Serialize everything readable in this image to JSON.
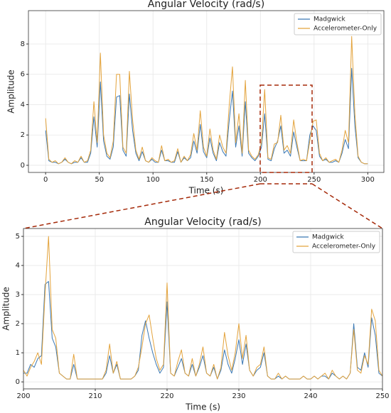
{
  "chart_data": [
    {
      "type": "line",
      "title": "Angular Velocity (rad/s)",
      "xlabel": "Time (s)",
      "ylabel": "Amplitude",
      "x": [
        0,
        3,
        6,
        9,
        12,
        15,
        18,
        21,
        24,
        27,
        30,
        33,
        36,
        39,
        42,
        45,
        48,
        51,
        54,
        57,
        60,
        63,
        66,
        69,
        72,
        75,
        78,
        81,
        84,
        87,
        90,
        93,
        96,
        99,
        102,
        105,
        108,
        111,
        114,
        117,
        120,
        123,
        126,
        129,
        132,
        135,
        138,
        141,
        144,
        147,
        150,
        153,
        156,
        159,
        162,
        165,
        168,
        171,
        174,
        177,
        180,
        183,
        186,
        189,
        192,
        195,
        198,
        201,
        204,
        207,
        210,
        213,
        216,
        219,
        222,
        225,
        228,
        231,
        234,
        237,
        240,
        243,
        246,
        249,
        252,
        255,
        258,
        261,
        264,
        267,
        270,
        273,
        276,
        279,
        282,
        285,
        288,
        291,
        294,
        297,
        300
      ],
      "series": [
        {
          "name": "Madgwick",
          "color": "#3b78b4",
          "values": [
            2.3,
            0.3,
            0.2,
            0.2,
            0.1,
            0.2,
            0.4,
            0.2,
            0.1,
            0.2,
            0.2,
            0.5,
            0.2,
            0.2,
            0.8,
            3.2,
            1.2,
            5.5,
            1.6,
            0.6,
            0.4,
            1.2,
            4.5,
            4.6,
            1.0,
            0.6,
            4.7,
            2.3,
            0.8,
            0.3,
            0.9,
            0.3,
            0.2,
            0.4,
            0.2,
            0.2,
            1.0,
            0.3,
            0.3,
            0.2,
            0.2,
            0.9,
            0.2,
            0.5,
            0.3,
            0.5,
            1.6,
            0.8,
            2.7,
            0.9,
            0.5,
            1.8,
            0.8,
            0.3,
            1.5,
            0.9,
            0.6,
            3.0,
            4.9,
            1.2,
            2.6,
            0.6,
            4.2,
            0.8,
            0.5,
            0.3,
            0.6,
            1.2,
            3.4,
            0.4,
            0.3,
            1.1,
            1.6,
            2.6,
            0.8,
            1.0,
            0.6,
            2.2,
            1.2,
            0.3,
            0.3,
            0.3,
            2.0,
            2.6,
            2.3,
            0.6,
            0.3,
            0.4,
            0.2,
            0.2,
            0.3,
            0.2,
            0.8,
            1.7,
            1.1,
            6.4,
            2.6,
            0.5,
            0.2,
            0.1,
            0.1
          ]
        },
        {
          "name": "Accelerometer-Only",
          "color": "#e3a33c",
          "values": [
            3.1,
            0.4,
            0.2,
            0.3,
            0.1,
            0.2,
            0.5,
            0.2,
            0.1,
            0.3,
            0.2,
            0.6,
            0.2,
            0.3,
            1.0,
            4.2,
            1.5,
            7.4,
            2.0,
            0.8,
            0.5,
            1.6,
            6.0,
            6.0,
            1.2,
            0.8,
            6.2,
            3.0,
            1.0,
            0.4,
            1.2,
            0.3,
            0.2,
            0.5,
            0.3,
            0.2,
            1.3,
            0.3,
            0.4,
            0.2,
            0.3,
            1.1,
            0.2,
            0.6,
            0.3,
            0.7,
            2.1,
            1.0,
            3.6,
            1.2,
            0.6,
            2.4,
            1.0,
            0.4,
            2.0,
            1.2,
            0.8,
            4.0,
            6.5,
            1.5,
            3.4,
            0.8,
            5.6,
            1.0,
            0.6,
            0.4,
            0.7,
            1.5,
            5.0,
            0.5,
            0.4,
            1.4,
            1.5,
            3.3,
            1.0,
            1.3,
            0.8,
            3.0,
            1.5,
            0.3,
            0.4,
            0.3,
            1.6,
            2.9,
            3.0,
            0.8,
            0.3,
            0.5,
            0.2,
            0.3,
            0.4,
            0.2,
            1.0,
            2.3,
            1.5,
            8.5,
            3.4,
            0.6,
            0.2,
            0.1,
            0.1
          ]
        }
      ],
      "xlim": [
        -16,
        315
      ],
      "xticks": [
        0,
        50,
        100,
        150,
        200,
        250,
        300
      ],
      "ylim": [
        -0.47,
        10.2
      ],
      "yticks": [
        0,
        2,
        4,
        6,
        8
      ],
      "grid": true,
      "legend": "upper right"
    },
    {
      "type": "line",
      "title": "Angular Velocity (rad/s)",
      "xlabel": "Time (s)",
      "ylabel": "Amplitude",
      "x": [
        200,
        200.5,
        201,
        201.5,
        202,
        202.5,
        203,
        203.5,
        204,
        204.5,
        205,
        205.5,
        206,
        206.5,
        207,
        207.5,
        208,
        208.5,
        209,
        209.5,
        210,
        210.5,
        211,
        211.5,
        212,
        212.5,
        213,
        213.5,
        214,
        214.5,
        215,
        215.5,
        216,
        216.5,
        217,
        217.5,
        218,
        218.5,
        219,
        219.5,
        220,
        220.5,
        221,
        221.5,
        222,
        222.5,
        223,
        223.5,
        224,
        224.5,
        225,
        225.5,
        226,
        226.5,
        227,
        227.5,
        228,
        228.5,
        229,
        229.5,
        230,
        230.5,
        231,
        231.5,
        232,
        232.5,
        233,
        233.5,
        234,
        234.5,
        235,
        235.5,
        236,
        236.5,
        237,
        237.5,
        238,
        238.5,
        239,
        239.5,
        240,
        240.5,
        241,
        241.5,
        242,
        242.5,
        243,
        243.5,
        244,
        244.5,
        245,
        245.5,
        246,
        246.5,
        247,
        247.5,
        248,
        248.5,
        249,
        249.5,
        250
      ],
      "series": [
        {
          "name": "Madgwick",
          "color": "#3b78b4",
          "values": [
            0.3,
            0.3,
            0.6,
            0.5,
            0.8,
            0.9,
            3.35,
            3.45,
            1.5,
            1.2,
            0.3,
            0.2,
            0.1,
            0.1,
            0.6,
            0.1,
            0.1,
            0.1,
            0.1,
            0.1,
            0.1,
            0.1,
            0.1,
            0.3,
            0.9,
            0.3,
            0.6,
            0.1,
            0.1,
            0.1,
            0.1,
            0.2,
            0.4,
            1.6,
            2.1,
            1.5,
            1.0,
            0.6,
            0.3,
            0.5,
            2.75,
            0.3,
            0.2,
            0.5,
            0.8,
            0.3,
            0.2,
            0.6,
            0.2,
            0.5,
            0.9,
            0.3,
            0.2,
            0.5,
            0.1,
            0.4,
            1.1,
            0.6,
            0.3,
            0.8,
            1.45,
            0.6,
            1.3,
            0.4,
            0.2,
            0.4,
            0.5,
            1.0,
            0.2,
            0.1,
            0.1,
            0.2,
            0.1,
            0.2,
            0.1,
            0.1,
            0.1,
            0.1,
            0.2,
            0.1,
            0.1,
            0.2,
            0.1,
            0.2,
            0.2,
            0.1,
            0.3,
            0.2,
            0.1,
            0.2,
            0.1,
            0.3,
            2.0,
            0.5,
            0.4,
            1.0,
            0.5,
            2.2,
            1.6,
            0.3,
            0.2
          ]
        },
        {
          "name": "Accelerometer-Only",
          "color": "#e3a33c",
          "values": [
            0.4,
            0.2,
            0.5,
            0.7,
            1.0,
            0.6,
            3.0,
            5.0,
            1.8,
            1.5,
            0.3,
            0.2,
            0.1,
            0.1,
            0.95,
            0.1,
            0.1,
            0.1,
            0.1,
            0.1,
            0.1,
            0.1,
            0.1,
            0.4,
            1.3,
            0.3,
            0.7,
            0.1,
            0.1,
            0.1,
            0.1,
            0.2,
            0.5,
            1.2,
            2.0,
            2.3,
            1.5,
            0.8,
            0.4,
            0.6,
            3.4,
            0.3,
            0.2,
            0.7,
            1.1,
            0.3,
            0.2,
            0.8,
            0.2,
            0.6,
            1.2,
            0.3,
            0.2,
            0.6,
            0.1,
            0.5,
            1.7,
            0.9,
            0.4,
            1.0,
            2.0,
            0.8,
            1.6,
            0.4,
            0.2,
            0.5,
            0.6,
            1.2,
            0.2,
            0.1,
            0.1,
            0.3,
            0.1,
            0.2,
            0.1,
            0.1,
            0.1,
            0.1,
            0.2,
            0.1,
            0.1,
            0.2,
            0.1,
            0.2,
            0.3,
            0.1,
            0.4,
            0.2,
            0.1,
            0.2,
            0.1,
            0.3,
            1.8,
            0.4,
            0.3,
            0.9,
            0.6,
            2.5,
            2.1,
            0.4,
            0.2
          ]
        }
      ],
      "xlim": [
        200,
        250
      ],
      "xticks": [
        200,
        210,
        220,
        230,
        240,
        250
      ],
      "ylim": [
        -0.24,
        5.27
      ],
      "yticks": [
        0,
        1,
        2,
        3,
        4,
        5
      ],
      "grid": true,
      "legend": "upper right"
    }
  ]
}
